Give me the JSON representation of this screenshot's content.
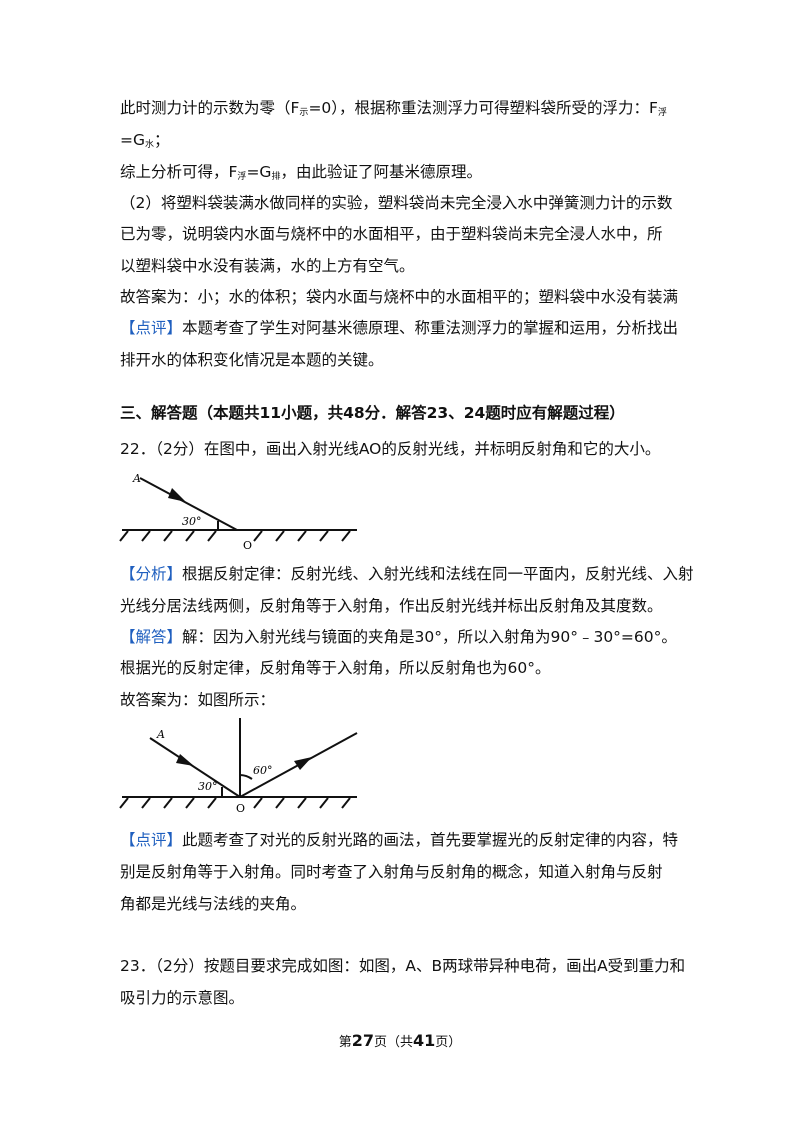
{
  "body": {
    "lines": [
      [
        "此时测力计的示数为零（F",
        {
          "sub": "示"
        },
        "=0），根据称重法测浮力可得塑料袋所受的浮力：F",
        {
          "sub": "浮"
        }
      ],
      [
        "=G",
        {
          "sub": "水"
        },
        "；"
      ],
      [
        "综上分析可得，F",
        {
          "sub": "浮"
        },
        "=G",
        {
          "sub": "排"
        },
        "，由此验证了阿基米德原理。"
      ],
      [
        "（2）将塑料袋装满水做同样的实验，塑料袋尚未完全浸入水中弹簧测力计的示数"
      ],
      [
        "已为零，说明袋内水面与烧杯中的水面相平，由于塑料袋尚未完全浸人水中，所"
      ],
      [
        "以塑料袋中水没有装满，水的上方有空气。"
      ],
      [
        "故答案为：小；水的体积；袋内水面与烧杯中的水面相平的；塑料袋中水没有装满"
      ],
      [
        {
          "tag": "【点评】"
        },
        "本题考查了学生对阿基米德原理、称重法测浮力的掌握和运用，分析找出"
      ],
      [
        "排开水的体积变化情况是本题的关键。"
      ],
      [
        {
          "bold": "三、解答题（本题共11小题，共48分．解答23、24题时应有解题过程）"
        }
      ],
      [
        "22．（2分）在图中，画出入射光线AO的反射光线，并标明反射角和它的大小。"
      ],
      [
        {
          "tag": "【分析】"
        },
        "根据反射定律：反射光线、入射光线和法线在同一平面内，反射光线、入射"
      ],
      [
        "光线分居法线两侧，反射角等于入射角，作出反射光线并标出反射角及其度数。"
      ],
      [
        {
          "tag": "【解答】"
        },
        "解：因为入射光线与镜面的夹角是30°，所以入射角为90°﹣30°=60°。"
      ],
      [
        "根据光的反射定律，反射角等于入射角，所以反射角也为60°。"
      ],
      [
        "故答案为：如图所示："
      ],
      [
        {
          "tag": "【点评】"
        },
        "此题考查了对光的反射光路的画法，首先要掌握光的反射定律的内容，特"
      ],
      [
        "别是反射角等于入射角。同时考查了入射角与反射角的概念，知道入射角与反射"
      ],
      [
        "角都是光线与法线的夹角。"
      ],
      [
        "23．（2分）按题目要求完成如图：如图，A、B两球带异种电荷，画出A受到重力和"
      ],
      [
        "吸引力的示意图。"
      ]
    ]
  },
  "figure1": {
    "a": "A",
    "angle": "30°",
    "o": "O"
  },
  "figure2": {
    "a": "A",
    "angle1": "30°",
    "angle2": "60°",
    "o": "O"
  },
  "footer": [
    "第",
    {
      "bold": "27"
    },
    "页（共",
    {
      "bold": "41"
    },
    "页）"
  ]
}
